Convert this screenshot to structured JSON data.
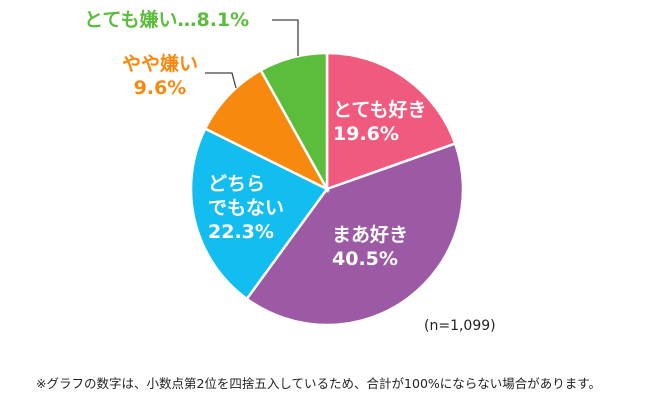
{
  "chart_data": {
    "type": "pie",
    "slices": [
      {
        "label": "とても好き",
        "value": 19.6,
        "value_text": "19.6%",
        "color": "#f05a7e",
        "label_color": "#ffffff"
      },
      {
        "label": "まあ好き",
        "value": 40.5,
        "value_text": "40.5%",
        "color": "#9b5aa3",
        "label_color": "#ffffff"
      },
      {
        "label": "どちら\nでもない",
        "value": 22.3,
        "value_text": "22.3%",
        "color": "#12bdf0",
        "label_color": "#ffffff"
      },
      {
        "label": "やや嫌い",
        "value": 9.6,
        "value_text": "9.6%",
        "color": "#f7890f",
        "label_color": "#f7890f"
      },
      {
        "label": "とても嫌い",
        "value": 8.1,
        "value_text": "8.1%",
        "color": "#5cbd3c",
        "label_color": "#5cbd3c"
      }
    ],
    "outside_label_separator": "…"
  },
  "sample_size": "(n=1,099)",
  "footnote": "※グラフの数字は、小数点第2位を四捨五入しているため、合計が100%にならない場合があります。"
}
